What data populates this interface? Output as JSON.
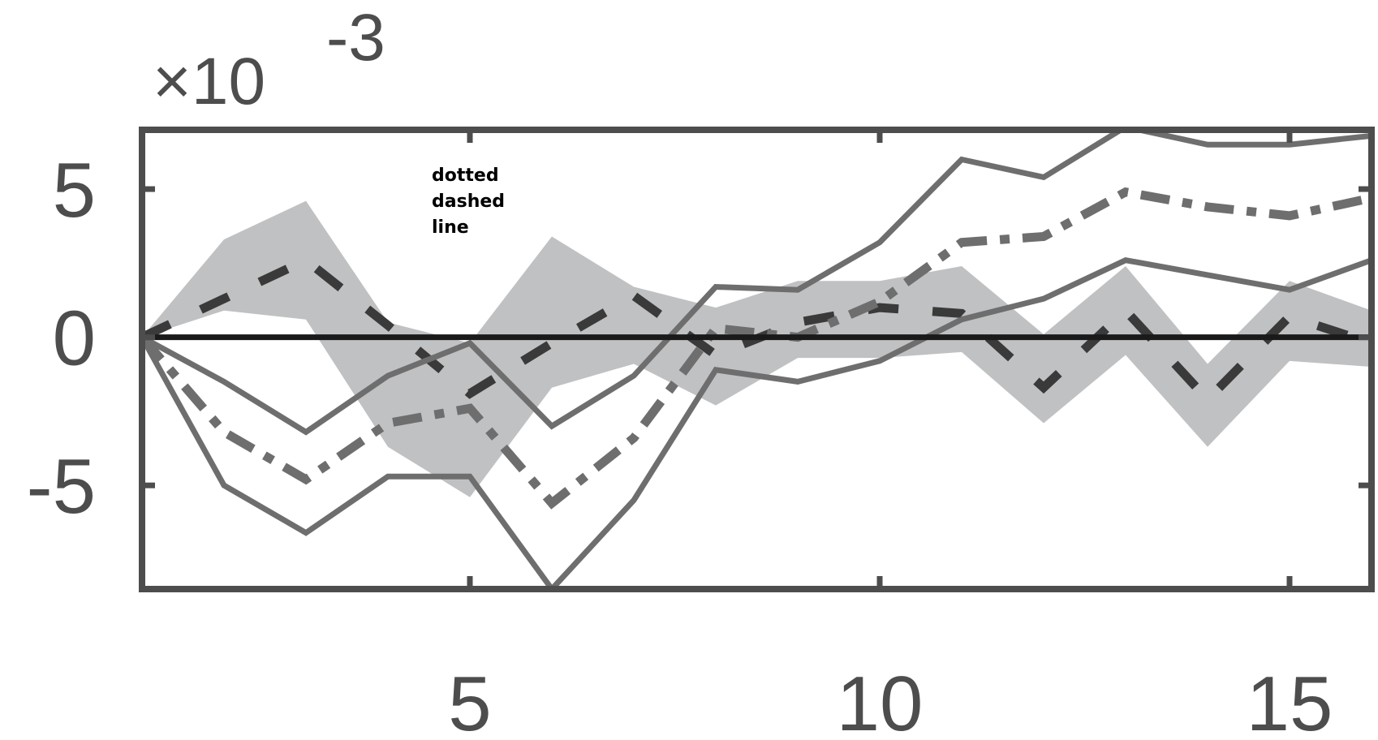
{
  "chart_data": {
    "type": "line",
    "exponent_label": {
      "prefix": "×10",
      "power": "-3"
    },
    "annotation": [
      "dotted",
      "dashed",
      "line"
    ],
    "xlim": [
      1,
      16
    ],
    "ylim": [
      -8.5,
      7
    ],
    "xticks": [
      5,
      10,
      15
    ],
    "yticks": [
      5,
      0,
      -5
    ],
    "ytick_labels": [
      "5",
      "0",
      "-5"
    ],
    "zero_line": 0,
    "x": [
      1,
      2,
      3,
      4,
      5,
      6,
      7,
      8,
      9,
      10,
      11,
      12,
      13,
      14,
      15,
      16
    ],
    "band": {
      "upper": [
        0,
        3.3,
        4.6,
        0.5,
        -0.2,
        3.4,
        1.7,
        1.0,
        1.9,
        1.9,
        2.4,
        0.1,
        2.4,
        -0.9,
        1.9,
        0.9
      ],
      "lower": [
        0,
        0.9,
        0.6,
        -3.7,
        -5.4,
        -1.7,
        -0.9,
        -2.3,
        -0.7,
        -0.7,
        -0.5,
        -2.9,
        -0.6,
        -3.7,
        -0.8,
        -1.0
      ]
    },
    "series": [
      {
        "values": [
          0,
          1.3,
          2.6,
          0.4,
          -1.9,
          -0.2,
          1.4,
          -0.6,
          0.5,
          1.0,
          0.8,
          -1.7,
          0.9,
          -2.1,
          0.7,
          -0.2
        ],
        "color": "#3a3a3a",
        "style": "dashed"
      },
      {
        "values": [
          0,
          -3.2,
          -4.8,
          -2.9,
          -2.4,
          -5.6,
          -3.4,
          0.3,
          0,
          1.2,
          3.2,
          3.4,
          4.9,
          4.4,
          4.1,
          4.7
        ],
        "color": "#6e6e6e",
        "style": "dashdot"
      },
      {
        "values": [
          0,
          -1.5,
          -3.2,
          -1.3,
          -0.2,
          -3.0,
          -1.3,
          1.7,
          1.6,
          3.2,
          6.0,
          5.4,
          7.1,
          6.5,
          6.5,
          6.8
        ],
        "color": "#6e6e6e",
        "style": "solid"
      },
      {
        "values": [
          0,
          -5.0,
          -6.6,
          -4.7,
          -4.7,
          -8.5,
          -5.5,
          -1.1,
          -1.5,
          -0.8,
          0.6,
          1.3,
          2.6,
          2.1,
          1.6,
          2.6
        ],
        "color": "#6e6e6e",
        "style": "solid"
      }
    ],
    "colors": {
      "band": "#c0c1c3",
      "axis": "#4d4d4d",
      "zero": "#1a1a1a"
    }
  }
}
